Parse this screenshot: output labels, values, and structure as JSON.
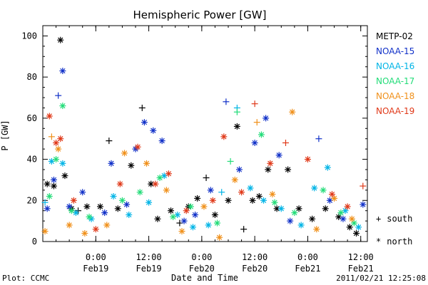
{
  "chart_data": {
    "type": "scatter",
    "title": "Hemispheric Power [GW]",
    "ylabel": "P [GW]",
    "xlabel": "Date and Time",
    "ylim": [
      0,
      105
    ],
    "yticks": [
      0,
      20,
      40,
      60,
      80,
      100
    ],
    "xlim": [
      "2011-02-18T12:00",
      "2011-02-21T13:30"
    ],
    "xticks": [
      {
        "time": "2011-02-19T00:00",
        "label1": "0:00",
        "label2": "Feb19"
      },
      {
        "time": "2011-02-19T12:00",
        "label1": "12:00",
        "label2": "Feb19"
      },
      {
        "time": "2011-02-20T00:00",
        "label1": "0:00",
        "label2": "Feb20"
      },
      {
        "time": "2011-02-20T12:00",
        "label1": "12:00",
        "label2": "Feb20"
      },
      {
        "time": "2011-02-21T00:00",
        "label1": "0:00",
        "label2": "Feb21"
      },
      {
        "time": "2011-02-21T12:00",
        "label1": "12:00",
        "label2": "Feb21"
      }
    ],
    "marker_legend": [
      {
        "symbol": "+",
        "label": "south"
      },
      {
        "symbol": "*",
        "label": "north"
      }
    ],
    "series": [
      {
        "name": "METP-02",
        "color": "#000000",
        "points": [
          {
            "t": "2011-02-18T13:00",
            "v": 28,
            "h": "north"
          },
          {
            "t": "2011-02-18T14:30",
            "v": 27,
            "h": "north"
          },
          {
            "t": "2011-02-18T16:00",
            "v": 98,
            "h": "north"
          },
          {
            "t": "2011-02-18T17:00",
            "v": 32,
            "h": "north"
          },
          {
            "t": "2011-02-18T18:30",
            "v": 16,
            "h": "north"
          },
          {
            "t": "2011-02-18T20:00",
            "v": 15,
            "h": "south"
          },
          {
            "t": "2011-02-18T22:00",
            "v": 17,
            "h": "north"
          },
          {
            "t": "2011-02-19T01:00",
            "v": 17,
            "h": "north"
          },
          {
            "t": "2011-02-19T03:00",
            "v": 49,
            "h": "south"
          },
          {
            "t": "2011-02-19T05:00",
            "v": 16,
            "h": "north"
          },
          {
            "t": "2011-02-19T08:00",
            "v": 37,
            "h": "north"
          },
          {
            "t": "2011-02-19T10:30",
            "v": 65,
            "h": "south"
          },
          {
            "t": "2011-02-19T12:30",
            "v": 28,
            "h": "north"
          },
          {
            "t": "2011-02-19T14:00",
            "v": 11,
            "h": "north"
          },
          {
            "t": "2011-02-19T17:00",
            "v": 15,
            "h": "north"
          },
          {
            "t": "2011-02-19T19:00",
            "v": 9,
            "h": "south"
          },
          {
            "t": "2011-02-19T21:00",
            "v": 17,
            "h": "north"
          },
          {
            "t": "2011-02-19T23:00",
            "v": 21,
            "h": "north"
          },
          {
            "t": "2011-02-20T01:00",
            "v": 31,
            "h": "south"
          },
          {
            "t": "2011-02-20T03:00",
            "v": 13,
            "h": "north"
          },
          {
            "t": "2011-02-20T06:00",
            "v": 20,
            "h": "north"
          },
          {
            "t": "2011-02-20T08:00",
            "v": 56,
            "h": "north"
          },
          {
            "t": "2011-02-20T09:30",
            "v": 6,
            "h": "south"
          },
          {
            "t": "2011-02-20T11:30",
            "v": 20,
            "h": "north"
          },
          {
            "t": "2011-02-20T13:00",
            "v": 22,
            "h": "north"
          },
          {
            "t": "2011-02-20T15:00",
            "v": 35,
            "h": "north"
          },
          {
            "t": "2011-02-20T17:00",
            "v": 16,
            "h": "north"
          },
          {
            "t": "2011-02-20T19:30",
            "v": 35,
            "h": "north"
          },
          {
            "t": "2011-02-20T22:00",
            "v": 16,
            "h": "north"
          },
          {
            "t": "2011-02-21T01:00",
            "v": 11,
            "h": "north"
          },
          {
            "t": "2011-02-21T04:00",
            "v": 16,
            "h": "north"
          },
          {
            "t": "2011-02-21T07:00",
            "v": 12,
            "h": "north"
          },
          {
            "t": "2011-02-21T09:30",
            "v": 7,
            "h": "north"
          },
          {
            "t": "2011-02-21T11:00",
            "v": 4,
            "h": "north"
          }
        ]
      },
      {
        "name": "NOAA-15",
        "color": "#1030c8",
        "points": [
          {
            "t": "2011-02-18T13:00",
            "v": 16,
            "h": "north"
          },
          {
            "t": "2011-02-18T14:30",
            "v": 30,
            "h": "north"
          },
          {
            "t": "2011-02-18T15:30",
            "v": 71,
            "h": "south"
          },
          {
            "t": "2011-02-18T16:30",
            "v": 83,
            "h": "north"
          },
          {
            "t": "2011-02-18T18:00",
            "v": 17,
            "h": "north"
          },
          {
            "t": "2011-02-18T21:00",
            "v": 24,
            "h": "north"
          },
          {
            "t": "2011-02-19T02:00",
            "v": 14,
            "h": "north"
          },
          {
            "t": "2011-02-19T03:30",
            "v": 38,
            "h": "north"
          },
          {
            "t": "2011-02-19T07:00",
            "v": 18,
            "h": "north"
          },
          {
            "t": "2011-02-19T09:00",
            "v": 45,
            "h": "north"
          },
          {
            "t": "2011-02-19T11:00",
            "v": 58,
            "h": "north"
          },
          {
            "t": "2011-02-19T13:00",
            "v": 54,
            "h": "north"
          },
          {
            "t": "2011-02-19T15:00",
            "v": 49,
            "h": "north"
          },
          {
            "t": "2011-02-19T20:00",
            "v": 10,
            "h": "north"
          },
          {
            "t": "2011-02-19T22:30",
            "v": 13,
            "h": "north"
          },
          {
            "t": "2011-02-20T02:00",
            "v": 25,
            "h": "north"
          },
          {
            "t": "2011-02-20T05:30",
            "v": 68,
            "h": "south"
          },
          {
            "t": "2011-02-20T08:30",
            "v": 35,
            "h": "north"
          },
          {
            "t": "2011-02-20T12:00",
            "v": 48,
            "h": "north"
          },
          {
            "t": "2011-02-20T14:30",
            "v": 60,
            "h": "north"
          },
          {
            "t": "2011-02-20T17:30",
            "v": 42,
            "h": "north"
          },
          {
            "t": "2011-02-20T20:00",
            "v": 10,
            "h": "north"
          },
          {
            "t": "2011-02-21T02:30",
            "v": 50,
            "h": "south"
          },
          {
            "t": "2011-02-21T05:00",
            "v": 20,
            "h": "north"
          },
          {
            "t": "2011-02-21T08:00",
            "v": 11,
            "h": "north"
          },
          {
            "t": "2011-02-21T12:30",
            "v": 18,
            "h": "north"
          }
        ]
      },
      {
        "name": "NOAA-16",
        "color": "#00b4e6",
        "points": [
          {
            "t": "2011-02-18T12:30",
            "v": 19,
            "h": "south"
          },
          {
            "t": "2011-02-18T14:00",
            "v": 39,
            "h": "north"
          },
          {
            "t": "2011-02-18T16:30",
            "v": 38,
            "h": "north"
          },
          {
            "t": "2011-02-18T19:30",
            "v": 14,
            "h": "north"
          },
          {
            "t": "2011-02-18T23:00",
            "v": 11,
            "h": "north"
          },
          {
            "t": "2011-02-19T04:00",
            "v": 22,
            "h": "north"
          },
          {
            "t": "2011-02-19T07:30",
            "v": 13,
            "h": "north"
          },
          {
            "t": "2011-02-19T12:00",
            "v": 19,
            "h": "north"
          },
          {
            "t": "2011-02-19T15:30",
            "v": 32,
            "h": "north"
          },
          {
            "t": "2011-02-19T18:30",
            "v": 13,
            "h": "north"
          },
          {
            "t": "2011-02-19T22:00",
            "v": 7,
            "h": "north"
          },
          {
            "t": "2011-02-20T01:30",
            "v": 8,
            "h": "north"
          },
          {
            "t": "2011-02-20T04:30",
            "v": 24,
            "h": "south"
          },
          {
            "t": "2011-02-20T08:00",
            "v": 65,
            "h": "south"
          },
          {
            "t": "2011-02-20T11:00",
            "v": 26,
            "h": "north"
          },
          {
            "t": "2011-02-20T14:00",
            "v": 20,
            "h": "north"
          },
          {
            "t": "2011-02-20T18:00",
            "v": 16,
            "h": "north"
          },
          {
            "t": "2011-02-20T22:30",
            "v": 8,
            "h": "north"
          },
          {
            "t": "2011-02-21T01:30",
            "v": 26,
            "h": "north"
          },
          {
            "t": "2011-02-21T04:30",
            "v": 36,
            "h": "north"
          },
          {
            "t": "2011-02-21T08:30",
            "v": 15,
            "h": "north"
          },
          {
            "t": "2011-02-21T11:30",
            "v": 7,
            "h": "north"
          }
        ]
      },
      {
        "name": "NOAA-17",
        "color": "#22dc78",
        "points": [
          {
            "t": "2011-02-18T13:30",
            "v": 22,
            "h": "north"
          },
          {
            "t": "2011-02-18T15:00",
            "v": 40,
            "h": "north"
          },
          {
            "t": "2011-02-18T16:30",
            "v": 66,
            "h": "north"
          },
          {
            "t": "2011-02-18T18:30",
            "v": 15,
            "h": "north"
          },
          {
            "t": "2011-02-18T22:30",
            "v": 12,
            "h": "north"
          },
          {
            "t": "2011-02-19T06:00",
            "v": 20,
            "h": "north"
          },
          {
            "t": "2011-02-19T10:00",
            "v": 24,
            "h": "north"
          },
          {
            "t": "2011-02-19T14:30",
            "v": 31,
            "h": "north"
          },
          {
            "t": "2011-02-19T17:30",
            "v": 12,
            "h": "north"
          },
          {
            "t": "2011-02-19T21:30",
            "v": 17,
            "h": "north"
          },
          {
            "t": "2011-02-20T03:30",
            "v": 9,
            "h": "north"
          },
          {
            "t": "2011-02-20T06:30",
            "v": 39,
            "h": "south"
          },
          {
            "t": "2011-02-20T08:00",
            "v": 63,
            "h": "south"
          },
          {
            "t": "2011-02-20T13:30",
            "v": 52,
            "h": "north"
          },
          {
            "t": "2011-02-20T16:30",
            "v": 19,
            "h": "north"
          },
          {
            "t": "2011-02-20T21:00",
            "v": 14,
            "h": "north"
          },
          {
            "t": "2011-02-21T03:30",
            "v": 25,
            "h": "north"
          },
          {
            "t": "2011-02-21T07:30",
            "v": 14,
            "h": "north"
          },
          {
            "t": "2011-02-21T10:30",
            "v": 9,
            "h": "north"
          }
        ]
      },
      {
        "name": "NOAA-18",
        "color": "#f0901a",
        "points": [
          {
            "t": "2011-02-18T12:30",
            "v": 5,
            "h": "north"
          },
          {
            "t": "2011-02-18T14:00",
            "v": 51,
            "h": "south"
          },
          {
            "t": "2011-02-18T15:30",
            "v": 45,
            "h": "north"
          },
          {
            "t": "2011-02-18T18:00",
            "v": 8,
            "h": "north"
          },
          {
            "t": "2011-02-18T21:30",
            "v": 4,
            "h": "north"
          },
          {
            "t": "2011-02-19T02:30",
            "v": 8,
            "h": "north"
          },
          {
            "t": "2011-02-19T06:30",
            "v": 43,
            "h": "north"
          },
          {
            "t": "2011-02-19T11:30",
            "v": 38,
            "h": "north"
          },
          {
            "t": "2011-02-19T16:00",
            "v": 25,
            "h": "north"
          },
          {
            "t": "2011-02-19T19:30",
            "v": 5,
            "h": "north"
          },
          {
            "t": "2011-02-20T00:30",
            "v": 17,
            "h": "north"
          },
          {
            "t": "2011-02-20T04:00",
            "v": 2,
            "h": "north"
          },
          {
            "t": "2011-02-20T07:30",
            "v": 30,
            "h": "north"
          },
          {
            "t": "2011-02-20T12:30",
            "v": 58,
            "h": "south"
          },
          {
            "t": "2011-02-20T16:00",
            "v": 23,
            "h": "north"
          },
          {
            "t": "2011-02-20T20:30",
            "v": 63,
            "h": "north"
          },
          {
            "t": "2011-02-21T02:00",
            "v": 6,
            "h": "north"
          },
          {
            "t": "2011-02-21T06:00",
            "v": 21,
            "h": "north"
          },
          {
            "t": "2011-02-21T10:00",
            "v": 11,
            "h": "north"
          }
        ]
      },
      {
        "name": "NOAA-19",
        "color": "#e03818",
        "points": [
          {
            "t": "2011-02-18T13:30",
            "v": 61,
            "h": "north"
          },
          {
            "t": "2011-02-18T15:00",
            "v": 48,
            "h": "north"
          },
          {
            "t": "2011-02-18T16:00",
            "v": 50,
            "h": "north"
          },
          {
            "t": "2011-02-18T19:00",
            "v": 20,
            "h": "north"
          },
          {
            "t": "2011-02-19T00:00",
            "v": 6,
            "h": "north"
          },
          {
            "t": "2011-02-19T05:30",
            "v": 28,
            "h": "north"
          },
          {
            "t": "2011-02-19T09:30",
            "v": 46,
            "h": "north"
          },
          {
            "t": "2011-02-19T13:30",
            "v": 28,
            "h": "north"
          },
          {
            "t": "2011-02-19T16:30",
            "v": 33,
            "h": "north"
          },
          {
            "t": "2011-02-19T20:30",
            "v": 15,
            "h": "north"
          },
          {
            "t": "2011-02-20T02:30",
            "v": 20,
            "h": "north"
          },
          {
            "t": "2011-02-20T05:00",
            "v": 51,
            "h": "north"
          },
          {
            "t": "2011-02-20T09:00",
            "v": 24,
            "h": "north"
          },
          {
            "t": "2011-02-20T12:00",
            "v": 67,
            "h": "south"
          },
          {
            "t": "2011-02-20T15:30",
            "v": 38,
            "h": "north"
          },
          {
            "t": "2011-02-20T19:00",
            "v": 48,
            "h": "south"
          },
          {
            "t": "2011-02-21T00:00",
            "v": 40,
            "h": "north"
          },
          {
            "t": "2011-02-21T05:30",
            "v": 23,
            "h": "north"
          },
          {
            "t": "2011-02-21T09:00",
            "v": 17,
            "h": "north"
          },
          {
            "t": "2011-02-21T12:30",
            "v": 27,
            "h": "south"
          }
        ]
      }
    ]
  },
  "footer": {
    "plot_credit": "Plot: CCMC",
    "timestamp": "2011/02/21 12:25:08"
  }
}
